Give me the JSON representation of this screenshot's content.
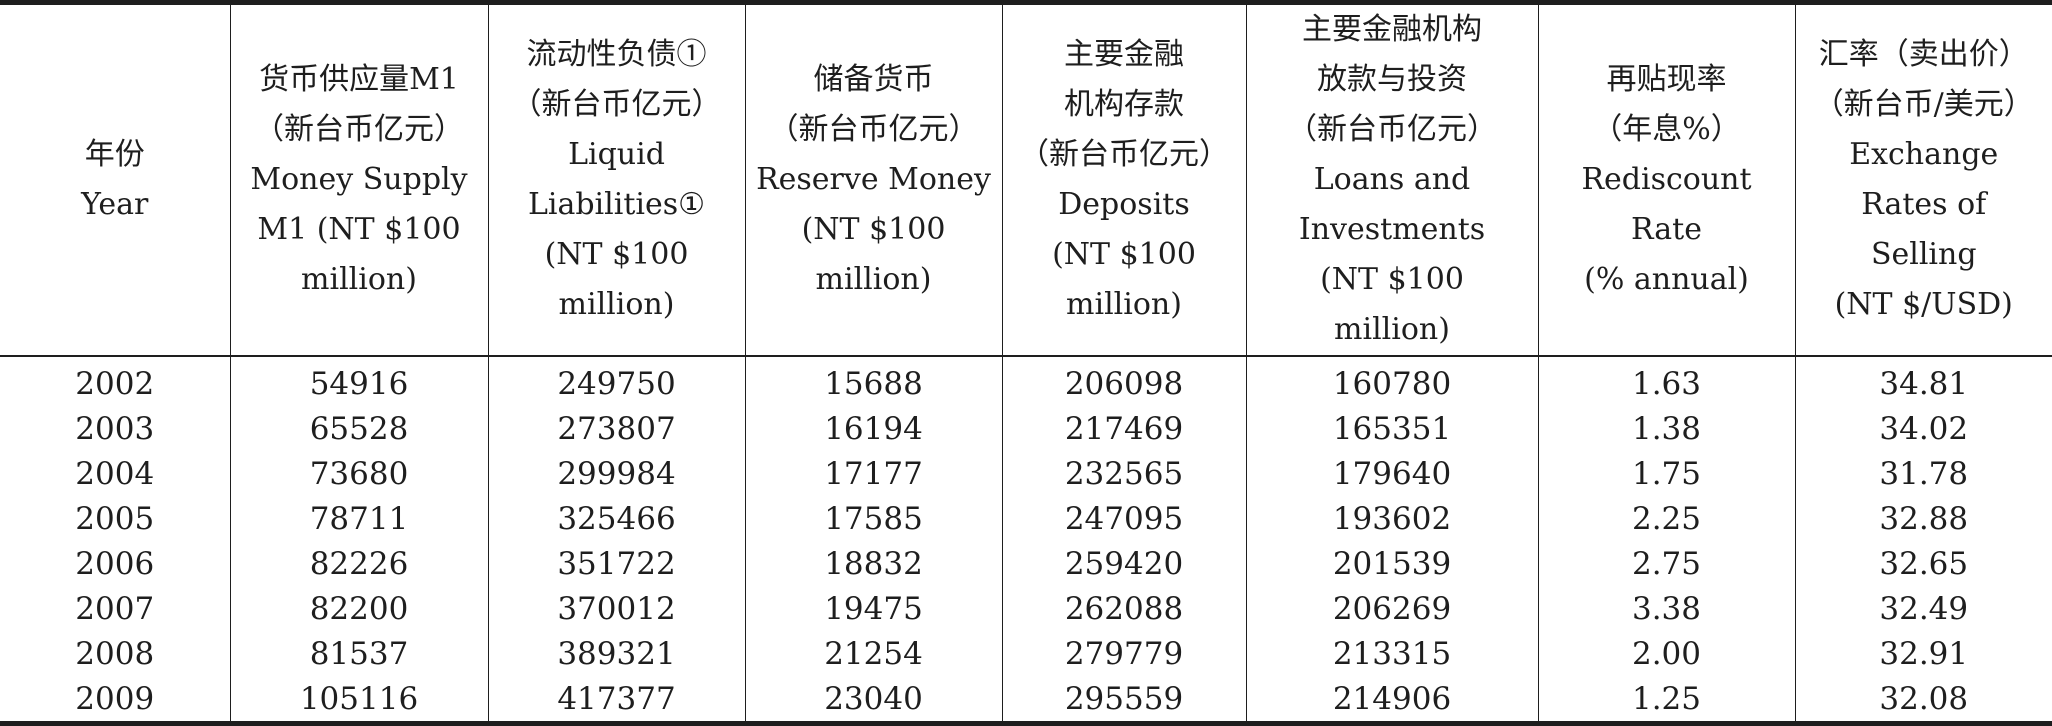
{
  "table": {
    "headers": [
      "年份\nYear",
      "货币供应量M1\n（新台币亿元）\nMoney Supply\nM1 (NT $100\nmillion)",
      "流动性负债①\n（新台币亿元）\nLiquid\nLiabilities①\n(NT $100\nmillion)",
      "储备货币\n（新台币亿元）\nReserve Money\n(NT $100\nmillion)",
      "主要金融\n机构存款\n（新台币亿元）\nDeposits\n(NT $100\nmillion)",
      "主要金融机构\n放款与投资\n（新台币亿元）\nLoans and\nInvestments\n(NT $100\nmillion)",
      "再贴现率\n（年息%）\nRediscount\nRate\n(% annual)",
      "汇率（卖出价）\n（新台币/美元）\nExchange\nRates of\nSelling\n(NT $/USD)"
    ],
    "rows": [
      [
        "2002",
        "54916",
        "249750",
        "15688",
        "206098",
        "160780",
        "1.63",
        "34.81"
      ],
      [
        "2003",
        "65528",
        "273807",
        "16194",
        "217469",
        "165351",
        "1.38",
        "34.02"
      ],
      [
        "2004",
        "73680",
        "299984",
        "17177",
        "232565",
        "179640",
        "1.75",
        "31.78"
      ],
      [
        "2005",
        "78711",
        "325466",
        "17585",
        "247095",
        "193602",
        "2.25",
        "32.88"
      ],
      [
        "2006",
        "82226",
        "351722",
        "18832",
        "259420",
        "201539",
        "2.75",
        "32.65"
      ],
      [
        "2007",
        "82200",
        "370012",
        "19475",
        "262088",
        "206269",
        "3.38",
        "32.49"
      ],
      [
        "2008",
        "81537",
        "389321",
        "21254",
        "279779",
        "213315",
        "2.00",
        "32.91"
      ],
      [
        "2009",
        "105116",
        "417377",
        "23040",
        "295559",
        "214906",
        "1.25",
        "32.08"
      ]
    ]
  }
}
